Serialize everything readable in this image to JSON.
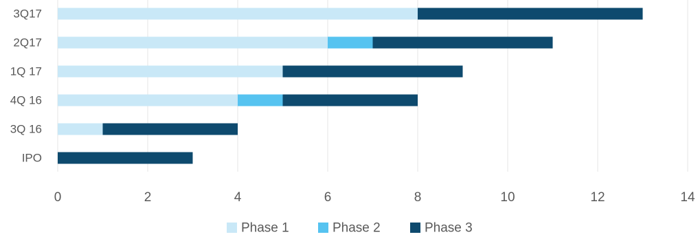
{
  "chart_data": {
    "type": "bar",
    "orientation": "horizontal",
    "stacked": true,
    "title": "",
    "xlabel": "",
    "ylabel": "",
    "categories": [
      "3Q17",
      "2Q17",
      "1Q 17",
      "4Q 16",
      "3Q 16",
      "IPO"
    ],
    "series": [
      {
        "name": "Phase 1",
        "color": "#c9e8f7",
        "values": [
          8,
          6,
          5,
          4,
          1,
          0
        ]
      },
      {
        "name": "Phase 2",
        "color": "#56c3f0",
        "values": [
          0,
          1,
          0,
          1,
          0,
          0
        ]
      },
      {
        "name": "Phase 3",
        "color": "#0e4a6e",
        "values": [
          5,
          4,
          4,
          3,
          3,
          3
        ]
      }
    ],
    "xlim": [
      0,
      14
    ],
    "xticks": [
      0,
      2,
      4,
      6,
      8,
      10,
      12,
      14
    ],
    "grid": "vertical",
    "legend_position": "bottom"
  }
}
